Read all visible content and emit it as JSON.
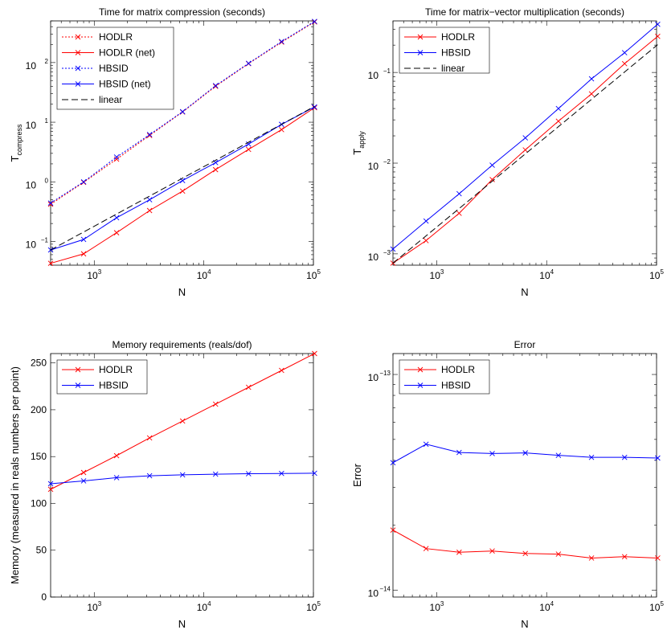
{
  "chart_data": [
    {
      "type": "line",
      "title": "Time for matrix compression (seconds)",
      "xlabel": "N",
      "ylabel": "T",
      "ylabel_sub": "compress",
      "xscale": "log",
      "yscale": "log",
      "xlim": [
        400,
        100000
      ],
      "ylim": [
        0.04,
        500
      ],
      "xticks": [
        1000,
        10000,
        100000
      ],
      "xtick_labels": [
        {
          "base": "10",
          "exp": "3"
        },
        {
          "base": "10",
          "exp": "4"
        },
        {
          "base": "10",
          "exp": "5"
        }
      ],
      "yticks": [
        0.1,
        1,
        10,
        100
      ],
      "ytick_labels": [
        {
          "base": "10",
          "exp": "−1"
        },
        {
          "base": "10",
          "exp": "0"
        },
        {
          "base": "10",
          "exp": "1"
        },
        {
          "base": "10",
          "exp": "2"
        }
      ],
      "legend_position": "top-left",
      "grid": false,
      "x": [
        400,
        800,
        1600,
        3200,
        6400,
        12800,
        25600,
        51200,
        102400
      ],
      "series": [
        {
          "name": "HODLR",
          "color": "#ff0000",
          "style": "dotted",
          "marker": "x",
          "values": [
            0.42,
            0.98,
            2.4,
            6.0,
            14.8,
            40,
            96,
            220,
            480
          ]
        },
        {
          "name": "HODLR (net)",
          "color": "#ff0000",
          "style": "solid",
          "marker": "x",
          "values": [
            0.043,
            0.062,
            0.14,
            0.33,
            0.7,
            1.6,
            3.5,
            7.5,
            17.5
          ]
        },
        {
          "name": "HBSID",
          "color": "#0000ff",
          "style": "dotted",
          "marker": "x",
          "values": [
            0.44,
            1.0,
            2.6,
            6.2,
            15,
            41,
            97,
            225,
            490
          ]
        },
        {
          "name": "HBSID (net)",
          "color": "#0000ff",
          "style": "solid",
          "marker": "x",
          "values": [
            0.072,
            0.108,
            0.25,
            0.5,
            1.05,
            2.1,
            4.3,
            9.2,
            18
          ]
        },
        {
          "name": "linear",
          "color": "#000000",
          "style": "dashed",
          "marker": "none",
          "values": [
            0.072,
            0.144,
            0.288,
            0.576,
            1.152,
            2.304,
            4.608,
            9.216,
            18.43
          ]
        }
      ]
    },
    {
      "type": "line",
      "title": "Time for matrix−vector multiplication (seconds)",
      "xlabel": "N",
      "ylabel": "T",
      "ylabel_sub": "apply",
      "xscale": "log",
      "yscale": "log",
      "xlim": [
        400,
        100000
      ],
      "ylim": [
        0.00075,
        0.37
      ],
      "xticks": [
        1000,
        10000,
        100000
      ],
      "xtick_labels": [
        {
          "base": "10",
          "exp": "3"
        },
        {
          "base": "10",
          "exp": "4"
        },
        {
          "base": "10",
          "exp": "5"
        }
      ],
      "yticks": [
        0.001,
        0.01,
        0.1
      ],
      "ytick_labels": [
        {
          "base": "10",
          "exp": "−3"
        },
        {
          "base": "10",
          "exp": "−2"
        },
        {
          "base": "10",
          "exp": "−1"
        }
      ],
      "legend_position": "top-left",
      "grid": false,
      "x": [
        400,
        800,
        1600,
        3200,
        6400,
        12800,
        25600,
        51200,
        102400
      ],
      "series": [
        {
          "name": "HODLR",
          "color": "#ff0000",
          "style": "solid",
          "marker": "x",
          "values": [
            0.00079,
            0.0014,
            0.0028,
            0.0066,
            0.014,
            0.029,
            0.058,
            0.125,
            0.25
          ]
        },
        {
          "name": "HBSID",
          "color": "#0000ff",
          "style": "solid",
          "marker": "x",
          "values": [
            0.00113,
            0.0023,
            0.0046,
            0.0095,
            0.019,
            0.04,
            0.085,
            0.165,
            0.34
          ]
        },
        {
          "name": "linear",
          "color": "#000000",
          "style": "dashed",
          "marker": "none",
          "values": [
            0.00079,
            0.00158,
            0.00316,
            0.00632,
            0.01264,
            0.02528,
            0.05056,
            0.1011,
            0.2022
          ]
        }
      ]
    },
    {
      "type": "line",
      "title": "Memory requirements (reals/dof)",
      "xlabel": "N",
      "ylabel": "Memory (measured in reals numbers per point)",
      "ylabel_sub": "",
      "xscale": "log",
      "yscale": "linear",
      "xlim": [
        400,
        100000
      ],
      "ylim": [
        0,
        260
      ],
      "xticks": [
        1000,
        10000,
        100000
      ],
      "xtick_labels": [
        {
          "base": "10",
          "exp": "3"
        },
        {
          "base": "10",
          "exp": "4"
        },
        {
          "base": "10",
          "exp": "5"
        }
      ],
      "yticks": [
        0,
        50,
        100,
        150,
        200,
        250
      ],
      "ytick_labels": [
        {
          "base": "0",
          "exp": ""
        },
        {
          "base": "50",
          "exp": ""
        },
        {
          "base": "100",
          "exp": ""
        },
        {
          "base": "150",
          "exp": ""
        },
        {
          "base": "200",
          "exp": ""
        },
        {
          "base": "250",
          "exp": ""
        }
      ],
      "legend_position": "top-left",
      "grid": false,
      "x": [
        400,
        800,
        1600,
        3200,
        6400,
        12800,
        25600,
        51200,
        102400
      ],
      "series": [
        {
          "name": "HODLR",
          "color": "#ff0000",
          "style": "solid",
          "marker": "x",
          "values": [
            115,
            133,
            151,
            170,
            188,
            206,
            224,
            242,
            260
          ]
        },
        {
          "name": "HBSID",
          "color": "#0000ff",
          "style": "solid",
          "marker": "x",
          "values": [
            121,
            124,
            127.5,
            129.5,
            130.5,
            131.2,
            131.7,
            132,
            132.2
          ]
        }
      ]
    },
    {
      "type": "line",
      "title": "Error",
      "xlabel": "N",
      "ylabel": "Error",
      "ylabel_sub": "",
      "xscale": "log",
      "yscale": "log",
      "xlim": [
        400,
        100000
      ],
      "ylim": [
        9.3e-15,
        1.25e-13
      ],
      "xticks": [
        1000,
        10000,
        100000
      ],
      "xtick_labels": [
        {
          "base": "10",
          "exp": "3"
        },
        {
          "base": "10",
          "exp": "4"
        },
        {
          "base": "10",
          "exp": "5"
        }
      ],
      "yticks": [
        1e-14,
        1e-13
      ],
      "ytick_labels": [
        {
          "base": "10",
          "exp": "−14"
        },
        {
          "base": "10",
          "exp": "−13"
        }
      ],
      "legend_position": "top-left",
      "grid": false,
      "x": [
        400,
        800,
        1600,
        3200,
        6400,
        12800,
        25600,
        51200,
        102400
      ],
      "series": [
        {
          "name": "HODLR",
          "color": "#ff0000",
          "style": "solid",
          "marker": "x",
          "values": [
            1.9e-14,
            1.56e-14,
            1.5e-14,
            1.52e-14,
            1.48e-14,
            1.47e-14,
            1.41e-14,
            1.43e-14,
            1.41e-14
          ]
        },
        {
          "name": "HBSID",
          "color": "#0000ff",
          "style": "solid",
          "marker": "x",
          "values": [
            3.9e-14,
            4.75e-14,
            4.35e-14,
            4.3e-14,
            4.33e-14,
            4.22e-14,
            4.13e-14,
            4.13e-14,
            4.1e-14
          ]
        }
      ]
    }
  ]
}
